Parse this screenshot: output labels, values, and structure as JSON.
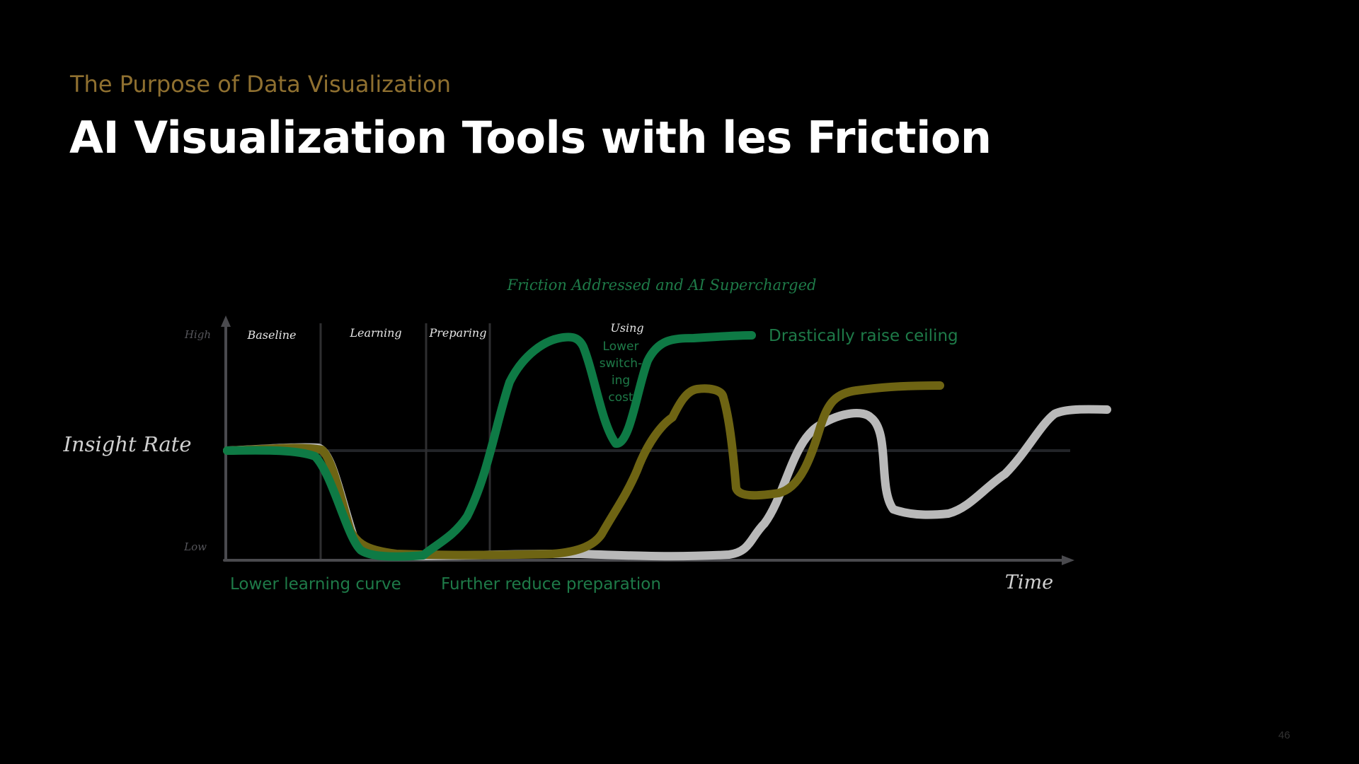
{
  "slide": {
    "subtitle": "The Purpose of Data Visualization",
    "title": "AI Visualization Tools with les Friction",
    "page_number": "46"
  },
  "diagram": {
    "heading": "Friction Addressed and AI Supercharged",
    "y_axis_label": "Insight Rate",
    "x_axis_label": "Time",
    "y_high_label": "High",
    "y_low_label": "Low",
    "phases": [
      "Baseline",
      "Learning",
      "Preparing",
      "Using"
    ],
    "annotations": {
      "lower_learning_curve": "Lower learning curve",
      "further_reduce_preparation": "Further reduce preparation",
      "drastically_raise_ceiling": "Drastically raise ceiling",
      "lower_switching_cost": [
        "Lower",
        "switch-",
        "ing",
        "cost"
      ]
    },
    "colors": {
      "background": "#000000",
      "axis": "#4a4a4e",
      "phase_divider": "#2e2e30",
      "baseline_line": "#222428",
      "traditional_curve": "#b9b9b9",
      "tool_curve": "#6e6413",
      "ai_curve": "#0e7a45",
      "annotation_green": "#1e7a48",
      "subtitle": "#8f7030",
      "title": "#ffffff"
    }
  }
}
